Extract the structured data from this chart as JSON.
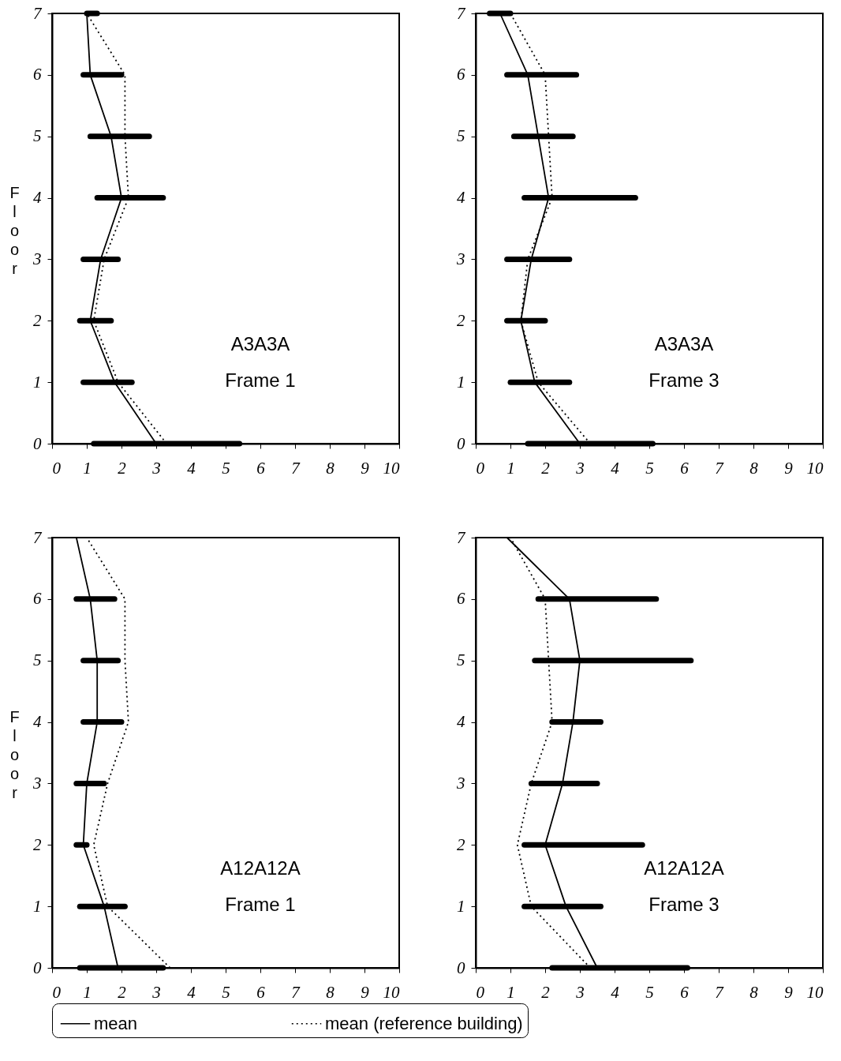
{
  "chart_data": [
    {
      "type": "line",
      "ylabel": "Floor",
      "xlim": [
        0,
        10
      ],
      "xticks": [
        0,
        1,
        2,
        3,
        4,
        5,
        6,
        7,
        8,
        9,
        10
      ],
      "ylim": [
        0,
        7
      ],
      "yticks": [
        0,
        1,
        2,
        3,
        4,
        5,
        6,
        7
      ],
      "marker": "none",
      "annotations": [
        "A3A3A",
        "Frame 1"
      ],
      "series": [
        {
          "color": "#000000",
          "line_style": "solid",
          "x": [
            3.0,
            1.8,
            1.1,
            1.4,
            2.0,
            1.7,
            1.1,
            1.0
          ],
          "values": [
            0,
            1,
            2,
            3,
            4,
            5,
            6,
            7
          ],
          "xerrors": [
            [
              1.2,
              5.4
            ],
            [
              0.9,
              2.3
            ],
            [
              0.8,
              1.7
            ],
            [
              0.9,
              1.9
            ],
            [
              1.3,
              3.2
            ],
            [
              1.1,
              2.8
            ],
            [
              0.9,
              2.0
            ],
            [
              1.0,
              1.3
            ]
          ]
        },
        {
          "color": "#000000",
          "line_style": "dotted",
          "x": [
            3.3,
            1.9,
            1.2,
            1.5,
            2.2,
            2.1,
            2.1,
            1.0
          ],
          "values": [
            0,
            1,
            2,
            3,
            4,
            5,
            6,
            7
          ]
        }
      ]
    },
    {
      "type": "line",
      "xlim": [
        0,
        10
      ],
      "xticks": [
        0,
        1,
        2,
        3,
        4,
        5,
        6,
        7,
        8,
        9,
        10
      ],
      "ylim": [
        0,
        7
      ],
      "yticks": [
        0,
        1,
        2,
        3,
        4,
        5,
        6,
        7
      ],
      "marker": "none",
      "annotations": [
        "A3A3A",
        "Frame 3"
      ],
      "series": [
        {
          "color": "#000000",
          "line_style": "solid",
          "x": [
            3.0,
            1.7,
            1.3,
            1.6,
            2.1,
            1.8,
            1.5,
            0.7
          ],
          "values": [
            0,
            1,
            2,
            3,
            4,
            5,
            6,
            7
          ],
          "xerrors": [
            [
              1.5,
              5.1
            ],
            [
              1.0,
              2.7
            ],
            [
              0.9,
              2.0
            ],
            [
              0.9,
              2.7
            ],
            [
              1.4,
              4.6
            ],
            [
              1.1,
              2.8
            ],
            [
              0.9,
              2.9
            ],
            [
              0.4,
              1.0
            ]
          ]
        },
        {
          "color": "#000000",
          "line_style": "dotted",
          "x": [
            3.3,
            1.8,
            1.3,
            1.5,
            2.2,
            2.1,
            2.0,
            1.0
          ],
          "values": [
            0,
            1,
            2,
            3,
            4,
            5,
            6,
            7
          ]
        }
      ]
    },
    {
      "type": "line",
      "ylabel": "Floor",
      "xlim": [
        0,
        10
      ],
      "xticks": [
        0,
        1,
        2,
        3,
        4,
        5,
        6,
        7,
        8,
        9,
        10
      ],
      "ylim": [
        0,
        7
      ],
      "yticks": [
        0,
        1,
        2,
        3,
        4,
        5,
        6,
        7
      ],
      "legend": "bottom",
      "marker": "none",
      "annotations": [
        "A12A12A",
        "Frame 1"
      ],
      "series": [
        {
          "name": "mean",
          "color": "#000000",
          "line_style": "solid",
          "x": [
            1.9,
            1.5,
            0.9,
            1.0,
            1.3,
            1.3,
            1.1,
            0.7
          ],
          "values": [
            0,
            1,
            2,
            3,
            4,
            5,
            6,
            7
          ],
          "xerrors": [
            [
              0.8,
              3.2
            ],
            [
              0.8,
              2.1
            ],
            [
              0.7,
              1.0
            ],
            [
              0.7,
              1.5
            ],
            [
              0.9,
              2.0
            ],
            [
              0.9,
              1.9
            ],
            [
              0.7,
              1.8
            ],
            null
          ]
        },
        {
          "name": "mean (reference building)",
          "color": "#000000",
          "line_style": "dotted",
          "x": [
            3.4,
            1.6,
            1.2,
            1.6,
            2.2,
            2.1,
            2.1,
            1.0
          ],
          "values": [
            0,
            1,
            2,
            3,
            4,
            5,
            6,
            7
          ]
        }
      ]
    },
    {
      "type": "line",
      "xlim": [
        0,
        10
      ],
      "xticks": [
        0,
        1,
        2,
        3,
        4,
        5,
        6,
        7,
        8,
        9,
        10
      ],
      "ylim": [
        0,
        7
      ],
      "yticks": [
        0,
        1,
        2,
        3,
        4,
        5,
        6,
        7
      ],
      "marker": "none",
      "annotations": [
        "A12A12A",
        "Frame 3"
      ],
      "series": [
        {
          "color": "#000000",
          "line_style": "solid",
          "x": [
            3.5,
            2.6,
            2.0,
            2.5,
            2.8,
            3.0,
            2.7,
            0.9
          ],
          "values": [
            0,
            1,
            2,
            3,
            4,
            5,
            6,
            7
          ],
          "xerrors": [
            [
              2.2,
              6.1
            ],
            [
              1.4,
              3.6
            ],
            [
              1.4,
              4.8
            ],
            [
              1.6,
              3.5
            ],
            [
              2.2,
              3.6
            ],
            [
              1.7,
              6.2
            ],
            [
              1.8,
              5.2
            ],
            null
          ]
        },
        {
          "color": "#000000",
          "line_style": "dotted",
          "x": [
            3.3,
            1.6,
            1.2,
            1.6,
            2.2,
            2.1,
            2.0,
            1.0
          ],
          "values": [
            0,
            1,
            2,
            3,
            4,
            5,
            6,
            7
          ]
        }
      ]
    }
  ]
}
